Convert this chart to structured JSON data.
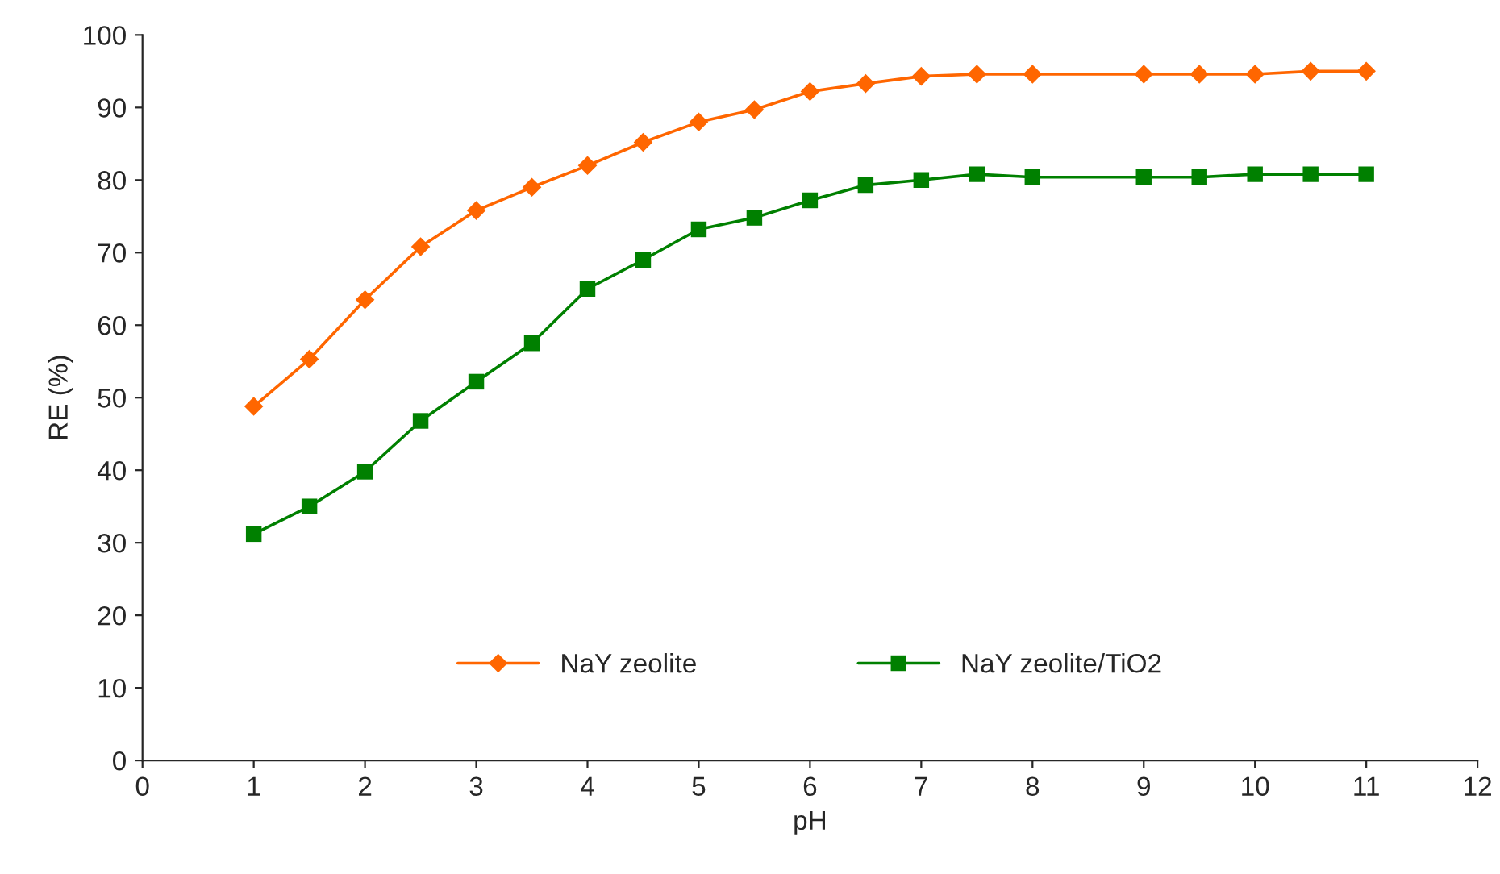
{
  "chart_data": {
    "type": "line",
    "xlabel": "pH",
    "ylabel": "RE (%)",
    "xlim": [
      0,
      12
    ],
    "xticks": [
      0,
      1,
      2,
      3,
      4,
      5,
      6,
      7,
      8,
      9,
      10,
      11,
      12
    ],
    "ylim": [
      0,
      100
    ],
    "yticks": [
      0,
      10,
      20,
      30,
      40,
      50,
      60,
      70,
      80,
      90,
      100
    ],
    "grid": false,
    "legend": "bottom",
    "line_style": "solid",
    "series": [
      {
        "name": "NaY zeolite",
        "color": "#ff6600",
        "marker": "diamond",
        "x": [
          1,
          1.5,
          2,
          2.5,
          3,
          3.5,
          4,
          4.5,
          5,
          5.5,
          6,
          6.5,
          7,
          7.5,
          8,
          9,
          9.5,
          10,
          10.5,
          11
        ],
        "values": [
          48.8,
          55.3,
          63.5,
          70.8,
          75.8,
          79,
          82,
          85.2,
          88,
          89.7,
          92.2,
          93.3,
          94.3,
          94.6,
          94.6,
          94.6,
          94.6,
          94.6,
          95,
          95
        ]
      },
      {
        "name": "NaY zeolite/TiO2",
        "color": "#008000",
        "marker": "square",
        "x": [
          1,
          1.5,
          2,
          2.5,
          3,
          3.5,
          4,
          4.5,
          5,
          5.5,
          6,
          6.5,
          7,
          7.5,
          8,
          9,
          9.5,
          10,
          10.5,
          11
        ],
        "values": [
          31.2,
          35,
          39.8,
          46.8,
          52.2,
          57.5,
          65,
          69,
          73.2,
          74.8,
          77.2,
          79.3,
          80,
          80.8,
          80.4,
          80.4,
          80.4,
          80.8,
          80.8,
          80.8
        ]
      }
    ]
  }
}
